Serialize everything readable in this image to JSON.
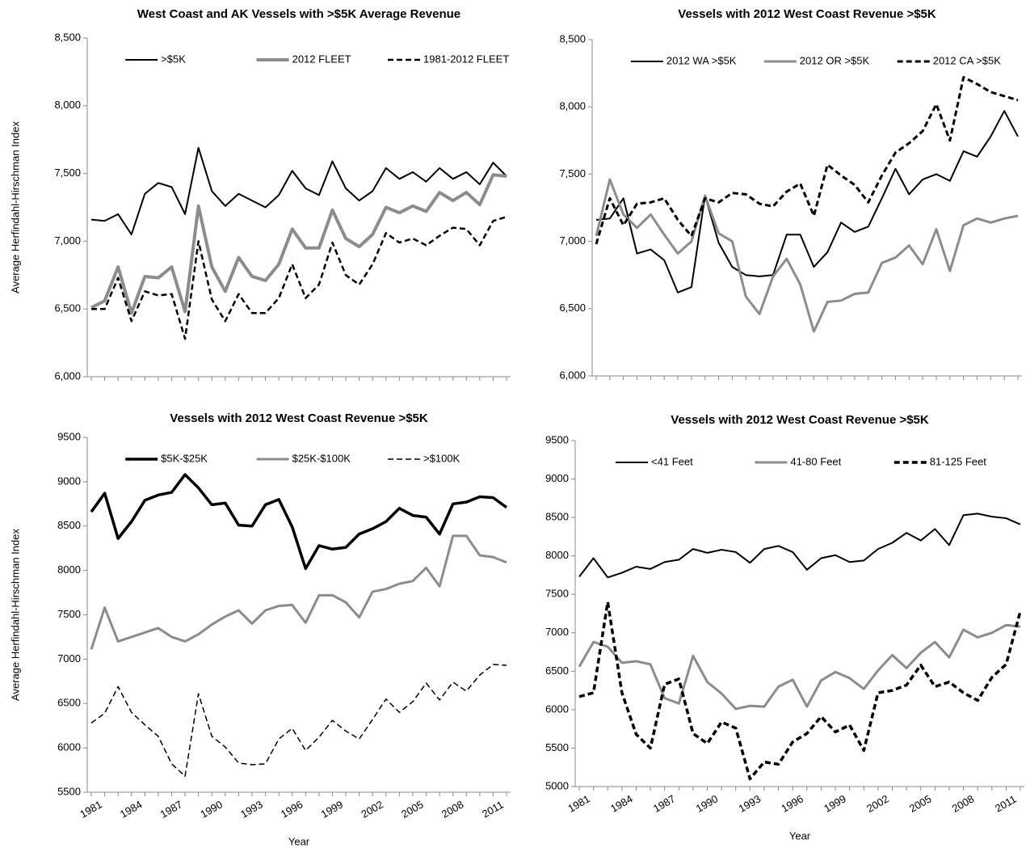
{
  "chart_data": [
    {
      "type": "line",
      "title": "West Coast and AK Vessels with >$5K Average Revenue",
      "ylabel": "Average Herfindahl-Hirschman Index",
      "x": [
        1981,
        1982,
        1983,
        1984,
        1985,
        1986,
        1987,
        1988,
        1989,
        1990,
        1991,
        1992,
        1993,
        1994,
        1995,
        1996,
        1997,
        1998,
        1999,
        2000,
        2001,
        2002,
        2003,
        2004,
        2005,
        2006,
        2007,
        2008,
        2009,
        2010,
        2011,
        2012
      ],
      "xlim": [
        1981,
        2012
      ],
      "ylim": [
        6000,
        8500
      ],
      "yticks": [
        {
          "value": 6000,
          "label": "6,000"
        },
        {
          "value": 6500,
          "label": "6,500"
        },
        {
          "value": 7000,
          "label": "7,000"
        },
        {
          "value": 7500,
          "label": "7,500"
        },
        {
          "value": 8000,
          "label": "8,000"
        },
        {
          "value": 8500,
          "label": "8,500"
        }
      ],
      "legend": "top",
      "series": [
        {
          "name": ">$5K",
          "color": "#000000",
          "line_width": 2,
          "dash": "solid",
          "values": [
            7160,
            7150,
            7200,
            7050,
            7350,
            7430,
            7400,
            7200,
            7690,
            7370,
            7260,
            7350,
            7300,
            7250,
            7340,
            7520,
            7390,
            7340,
            7590,
            7390,
            7300,
            7370,
            7540,
            7460,
            7510,
            7440,
            7540,
            7460,
            7510,
            7420,
            7580,
            7480
          ]
        },
        {
          "name": "2012 FLEET",
          "color": "#8c8c8c",
          "line_width": 4,
          "dash": "solid",
          "values": [
            6510,
            6560,
            6810,
            6470,
            6740,
            6730,
            6810,
            6480,
            7260,
            6810,
            6630,
            6880,
            6740,
            6710,
            6830,
            7090,
            6950,
            6950,
            7230,
            7020,
            6960,
            7050,
            7250,
            7210,
            7260,
            7220,
            7360,
            7300,
            7360,
            7270,
            7490,
            7480
          ]
        },
        {
          "name": "1981-2012 FLEET",
          "color": "#000000",
          "line_width": 2.5,
          "dash": "dashed",
          "values": [
            6500,
            6500,
            6730,
            6410,
            6630,
            6600,
            6610,
            6280,
            7000,
            6570,
            6410,
            6610,
            6470,
            6470,
            6580,
            6830,
            6580,
            6680,
            6990,
            6750,
            6680,
            6830,
            7060,
            6990,
            7020,
            6970,
            7040,
            7100,
            7090,
            6970,
            7150,
            7180
          ]
        }
      ]
    },
    {
      "type": "line",
      "title": "Vessels with 2012 West Coast Revenue >$5K",
      "x": [
        1981,
        1982,
        1983,
        1984,
        1985,
        1986,
        1987,
        1988,
        1989,
        1990,
        1991,
        1992,
        1993,
        1994,
        1995,
        1996,
        1997,
        1998,
        1999,
        2000,
        2001,
        2002,
        2003,
        2004,
        2005,
        2006,
        2007,
        2008,
        2009,
        2010,
        2011,
        2012
      ],
      "xlim": [
        1981,
        2012
      ],
      "ylim": [
        6000,
        8500
      ],
      "yticks": [
        {
          "value": 6000,
          "label": "6,000"
        },
        {
          "value": 6500,
          "label": "6,500"
        },
        {
          "value": 7000,
          "label": "7,000"
        },
        {
          "value": 7500,
          "label": "7,500"
        },
        {
          "value": 8000,
          "label": "8,000"
        },
        {
          "value": 8500,
          "label": "8,500"
        }
      ],
      "legend": "top",
      "series": [
        {
          "name": "2012 WA >$5K",
          "color": "#000000",
          "line_width": 2,
          "dash": "solid",
          "values": [
            7160,
            7170,
            7320,
            6910,
            6940,
            6860,
            6620,
            6660,
            7340,
            6990,
            6810,
            6750,
            6740,
            6750,
            7050,
            7050,
            6810,
            6920,
            7140,
            7070,
            7110,
            7320,
            7540,
            7350,
            7460,
            7500,
            7450,
            7670,
            7630,
            7780,
            7970,
            7780
          ]
        },
        {
          "name": "2012 OR >$5K",
          "color": "#8c8c8c",
          "line_width": 3,
          "dash": "solid",
          "values": [
            7040,
            7460,
            7200,
            7100,
            7200,
            7050,
            6910,
            7000,
            7340,
            7060,
            7000,
            6590,
            6460,
            6740,
            6870,
            6680,
            6330,
            6550,
            6560,
            6610,
            6620,
            6840,
            6880,
            6970,
            6830,
            7090,
            6780,
            7120,
            7170,
            7140,
            7170,
            7190
          ]
        },
        {
          "name": "2012 CA >$5K",
          "color": "#000000",
          "line_width": 3,
          "dash": "dashed",
          "values": [
            6980,
            7320,
            7120,
            7280,
            7290,
            7320,
            7160,
            7040,
            7320,
            7290,
            7360,
            7350,
            7280,
            7260,
            7370,
            7430,
            7190,
            7570,
            7490,
            7420,
            7290,
            7490,
            7660,
            7730,
            7820,
            8020,
            7750,
            8220,
            8170,
            8110,
            8080,
            8050
          ]
        }
      ]
    },
    {
      "type": "line",
      "title": "Vessels with 2012 West Coast Revenue >$5K",
      "ylabel": "Average Herfindahl-Hirschman Index",
      "xlabel": "Year",
      "x": [
        1981,
        1982,
        1983,
        1984,
        1985,
        1986,
        1987,
        1988,
        1989,
        1990,
        1991,
        1992,
        1993,
        1994,
        1995,
        1996,
        1997,
        1998,
        1999,
        2000,
        2001,
        2002,
        2003,
        2004,
        2005,
        2006,
        2007,
        2008,
        2009,
        2010,
        2011,
        2012
      ],
      "xlim": [
        1981,
        2012
      ],
      "xticks": [
        1981,
        1984,
        1987,
        1990,
        1993,
        1996,
        1999,
        2002,
        2005,
        2008,
        2011
      ],
      "ylim": [
        5500,
        9500
      ],
      "yticks": [
        5500,
        6000,
        6500,
        7000,
        7500,
        8000,
        8500,
        9000,
        9500
      ],
      "legend": "top",
      "series": [
        {
          "name": "$5K-$25K",
          "color": "#000000",
          "line_width": 3.5,
          "dash": "solid",
          "values": [
            8660,
            8870,
            8360,
            8550,
            8790,
            8850,
            8880,
            9080,
            8930,
            8740,
            8760,
            8510,
            8500,
            8740,
            8800,
            8490,
            8020,
            8280,
            8240,
            8260,
            8410,
            8470,
            8550,
            8700,
            8620,
            8600,
            8410,
            8750,
            8770,
            8830,
            8820,
            8710
          ]
        },
        {
          "name": "$25K-$100K",
          "color": "#8c8c8c",
          "line_width": 3,
          "dash": "solid",
          "values": [
            7110,
            7580,
            7200,
            7250,
            7300,
            7350,
            7250,
            7200,
            7280,
            7390,
            7480,
            7550,
            7400,
            7550,
            7600,
            7610,
            7410,
            7720,
            7720,
            7640,
            7470,
            7760,
            7790,
            7850,
            7880,
            8030,
            7820,
            8390,
            8390,
            8170,
            8150,
            8090
          ]
        },
        {
          "name": ">$100K",
          "color": "#000000",
          "line_width": 1.5,
          "dash": "dashed",
          "values": [
            6280,
            6390,
            6690,
            6400,
            6260,
            6130,
            5820,
            5680,
            6610,
            6130,
            6010,
            5830,
            5810,
            5820,
            6100,
            6220,
            5970,
            6120,
            6310,
            6190,
            6100,
            6320,
            6550,
            6400,
            6520,
            6730,
            6540,
            6740,
            6640,
            6820,
            6940,
            6930
          ]
        }
      ]
    },
    {
      "type": "line",
      "title": "Vessels with 2012 West Coast Revenue >$5K",
      "xlabel": "Year",
      "x": [
        1981,
        1982,
        1983,
        1984,
        1985,
        1986,
        1987,
        1988,
        1989,
        1990,
        1991,
        1992,
        1993,
        1994,
        1995,
        1996,
        1997,
        1998,
        1999,
        2000,
        2001,
        2002,
        2003,
        2004,
        2005,
        2006,
        2007,
        2008,
        2009,
        2010,
        2011,
        2012
      ],
      "xlim": [
        1981,
        2012
      ],
      "xticks": [
        1981,
        1984,
        1987,
        1990,
        1993,
        1996,
        1999,
        2002,
        2005,
        2008,
        2011
      ],
      "ylim": [
        5000,
        9500
      ],
      "yticks": [
        5000,
        5500,
        6000,
        6500,
        7000,
        7500,
        8000,
        8500,
        9000,
        9500
      ],
      "legend": "top",
      "series": [
        {
          "name": "<41 Feet",
          "color": "#000000",
          "line_width": 2,
          "dash": "solid",
          "values": [
            7730,
            7970,
            7720,
            7780,
            7860,
            7830,
            7920,
            7950,
            8090,
            8040,
            8080,
            8050,
            7910,
            8090,
            8130,
            8050,
            7820,
            7970,
            8010,
            7920,
            7940,
            8090,
            8170,
            8300,
            8200,
            8350,
            8140,
            8530,
            8550,
            8510,
            8490,
            8410
          ]
        },
        {
          "name": "41-80 Feet",
          "color": "#8c8c8c",
          "line_width": 3,
          "dash": "solid",
          "values": [
            6560,
            6880,
            6820,
            6610,
            6630,
            6590,
            6150,
            6080,
            6700,
            6360,
            6210,
            6010,
            6050,
            6040,
            6300,
            6390,
            6040,
            6380,
            6490,
            6410,
            6270,
            6510,
            6710,
            6540,
            6740,
            6880,
            6680,
            7040,
            6940,
            7000,
            7100,
            7080
          ]
        },
        {
          "name": "81-125 Feet",
          "color": "#000000",
          "line_width": 3.5,
          "dash": "dashed",
          "values": [
            6170,
            6220,
            7400,
            6220,
            5680,
            5500,
            6330,
            6400,
            5690,
            5560,
            5840,
            5760,
            5100,
            5320,
            5290,
            5580,
            5690,
            5910,
            5710,
            5800,
            5470,
            6220,
            6250,
            6320,
            6580,
            6300,
            6360,
            6220,
            6120,
            6420,
            6590,
            7280
          ]
        }
      ]
    }
  ]
}
